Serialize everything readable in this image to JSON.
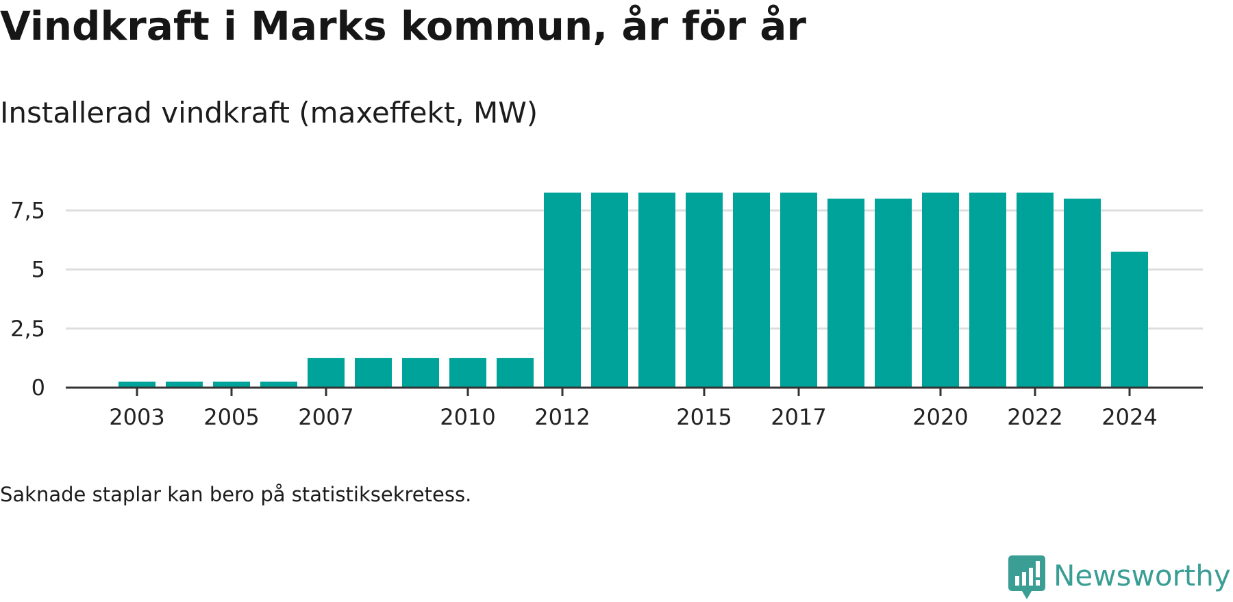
{
  "title": "Vindkraft i Marks kommun, år för år",
  "subtitle": "Installerad vindkraft (maxeffekt, MW)",
  "footnote": "Saknade staplar kan bero på statistiksekretess.",
  "brand": {
    "name": "Newsworthy",
    "icon": "newsworthy-logo-icon",
    "color": "#3a9e95"
  },
  "colors": {
    "bar": "#00a39a",
    "grid": "#dddddd",
    "axis": "#333333"
  },
  "chart_data": {
    "type": "bar",
    "categories": [
      "2003",
      "2004",
      "2005",
      "2006",
      "2007",
      "2008",
      "2009",
      "2010",
      "2011",
      "2012",
      "2013",
      "2014",
      "2015",
      "2016",
      "2017",
      "2018",
      "2019",
      "2020",
      "2021",
      "2022",
      "2023",
      "2024"
    ],
    "values": [
      0.25,
      0.25,
      0.25,
      0.25,
      1.25,
      1.25,
      1.25,
      1.25,
      1.25,
      8.25,
      8.25,
      8.25,
      8.25,
      8.25,
      8.25,
      8.0,
      8.0,
      8.25,
      8.25,
      8.25,
      8.0,
      5.75
    ],
    "x_tick_labels": [
      "2003",
      "2005",
      "2007",
      "2010",
      "2012",
      "2015",
      "2017",
      "2020",
      "2022",
      "2024"
    ],
    "y_ticks": [
      {
        "value": 0,
        "label": "0"
      },
      {
        "value": 2.5,
        "label": "2,5"
      },
      {
        "value": 5,
        "label": "5"
      },
      {
        "value": 7.5,
        "label": "7,5"
      }
    ],
    "ylim": [
      0,
      8.25
    ],
    "grid": true,
    "legend": "none"
  }
}
